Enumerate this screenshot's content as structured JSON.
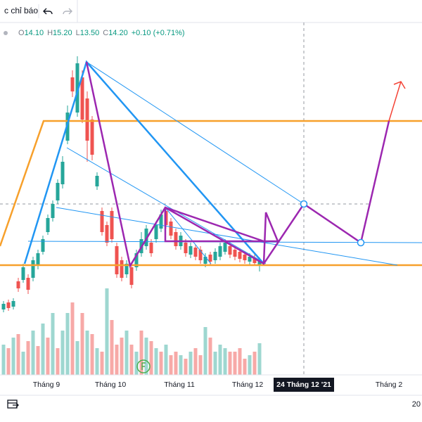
{
  "toolbar": {
    "indicators": "c chỉ báo"
  },
  "legend": {
    "items": [
      {
        "label": "O",
        "value": "14.10"
      },
      {
        "label": "H",
        "value": "15.20"
      },
      {
        "label": "L",
        "value": "13.50"
      },
      {
        "label": "C",
        "value": "14.20"
      }
    ],
    "change": "+0.10 (+0.71%)"
  },
  "time_axis": {
    "labels": [
      "Tháng 9",
      "Tháng 10",
      "Tháng 11",
      "Tháng 12",
      "Tháng 2"
    ],
    "crosshair": "24 Tháng 12 '21"
  },
  "footer": {
    "right": "20"
  }
}
